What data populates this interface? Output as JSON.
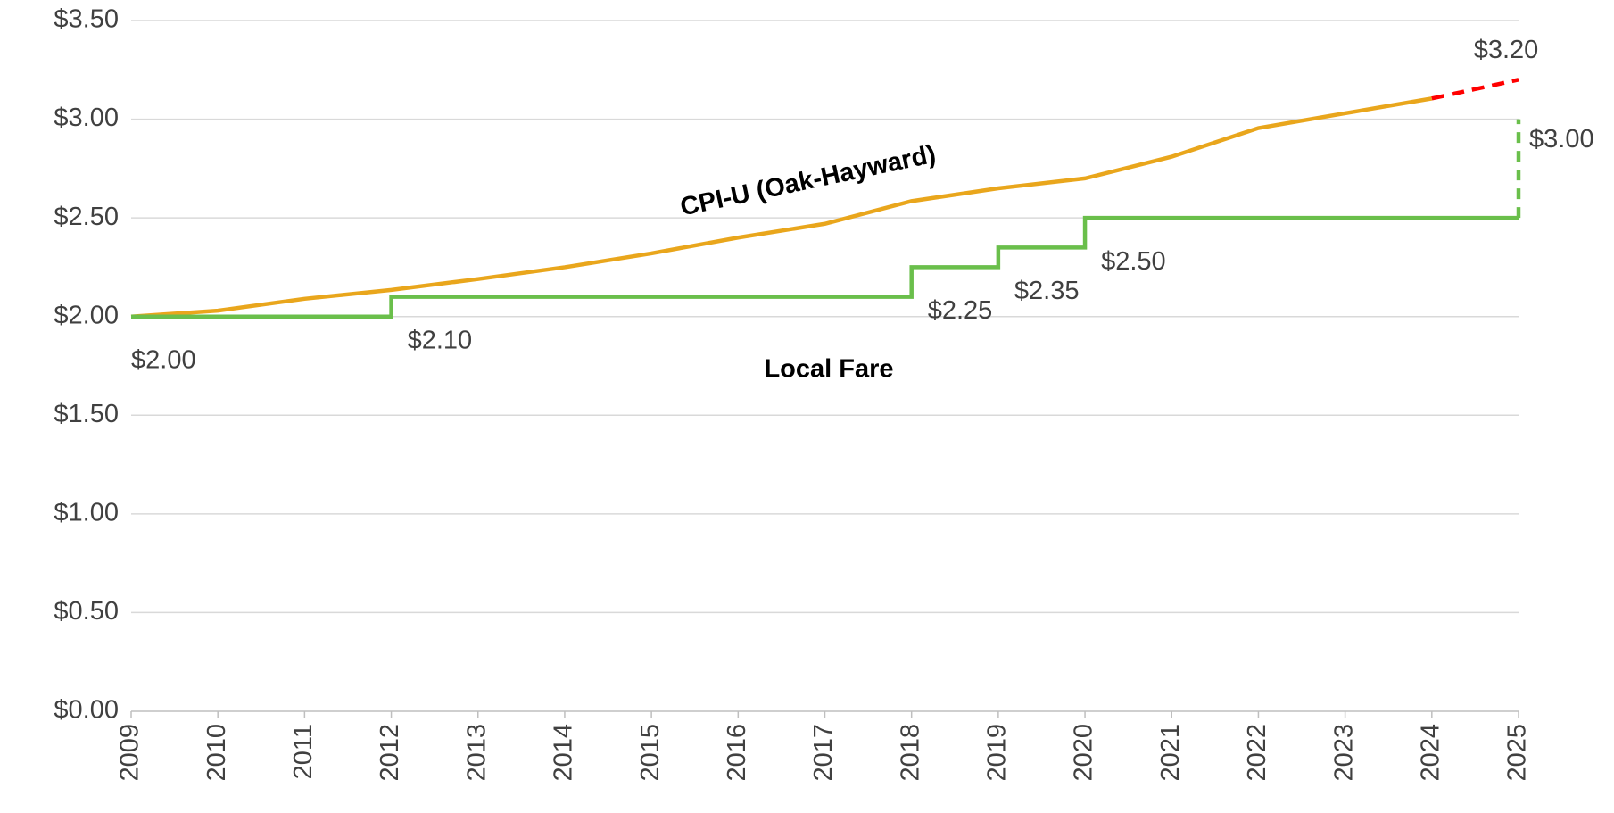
{
  "chart_data": {
    "type": "line",
    "x": [
      2009,
      2010,
      2011,
      2012,
      2013,
      2014,
      2015,
      2016,
      2017,
      2018,
      2019,
      2020,
      2021,
      2022,
      2023,
      2024,
      2025
    ],
    "xlim": [
      2009,
      2025
    ],
    "xticks": [
      2009,
      2010,
      2011,
      2012,
      2013,
      2014,
      2015,
      2016,
      2017,
      2018,
      2019,
      2020,
      2021,
      2022,
      2023,
      2024,
      2025
    ],
    "ylim": [
      0,
      3.5
    ],
    "yticks": [
      {
        "value": 0,
        "label": "$0.00"
      },
      {
        "value": 0.5,
        "label": "$0.50"
      },
      {
        "value": 1,
        "label": "$1.00"
      },
      {
        "value": 1.5,
        "label": "$1.50"
      },
      {
        "value": 2,
        "label": "$2.00"
      },
      {
        "value": 2.5,
        "label": "$2.50"
      },
      {
        "value": 3,
        "label": "$3.00"
      },
      {
        "value": 3.5,
        "label": "$3.50"
      }
    ],
    "grid": true,
    "series": [
      {
        "name": "CPI-U (Oak-Hayward)",
        "color": "#e9a61c",
        "style": "solid",
        "values": [
          2.0,
          2.03,
          2.09,
          2.135,
          2.19,
          2.25,
          2.32,
          2.4,
          2.47,
          2.585,
          2.65,
          2.7,
          2.81,
          2.955,
          3.03,
          3.105,
          null
        ]
      },
      {
        "color": "#ff0000",
        "style": "dashed",
        "values": [
          null,
          null,
          null,
          null,
          null,
          null,
          null,
          null,
          null,
          null,
          null,
          null,
          null,
          null,
          null,
          3.105,
          3.2
        ],
        "value_labels": [
          null,
          null,
          null,
          null,
          null,
          null,
          null,
          null,
          null,
          null,
          null,
          null,
          null,
          null,
          null,
          null,
          "$3.20"
        ]
      },
      {
        "name": "Local Fare",
        "color": "#6abf4b",
        "style": "step",
        "values": [
          2.0,
          2.0,
          2.0,
          2.1,
          2.1,
          2.1,
          2.1,
          2.1,
          2.1,
          2.25,
          2.35,
          2.5,
          2.5,
          2.5,
          2.5,
          2.5,
          2.5
        ],
        "value_labels": [
          "$2.00",
          null,
          null,
          "$2.10",
          null,
          null,
          null,
          null,
          null,
          "$2.25",
          "$2.35",
          "$2.50",
          null,
          null,
          null,
          null,
          null
        ]
      },
      {
        "color": "#6abf4b",
        "style": "dashed-rise",
        "values": [
          null,
          null,
          null,
          null,
          null,
          null,
          null,
          null,
          null,
          null,
          null,
          null,
          null,
          null,
          null,
          null,
          3.0
        ],
        "value_labels": [
          null,
          null,
          null,
          null,
          null,
          null,
          null,
          null,
          null,
          null,
          null,
          null,
          null,
          null,
          null,
          null,
          "$3.00"
        ]
      }
    ]
  }
}
